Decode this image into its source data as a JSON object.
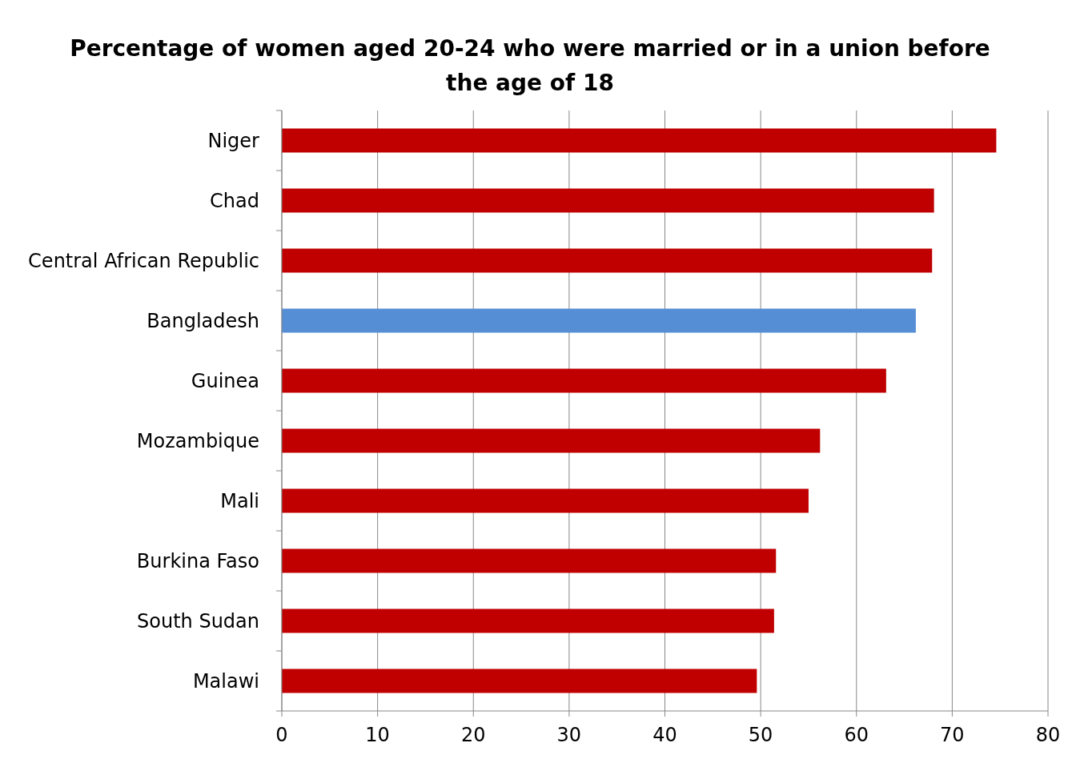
{
  "chart_data": {
    "type": "bar",
    "orientation": "horizontal",
    "title": "Percentage of women aged 20-24 who were married or in a union before the age of 18",
    "categories": [
      "Niger",
      "Chad",
      "Central African Republic",
      "Bangladesh",
      "Guinea",
      "Mozambique",
      "Mali",
      "Burkina Faso",
      "South Sudan",
      "Malawi"
    ],
    "values": [
      74.6,
      68.1,
      67.9,
      66.2,
      63.1,
      56.2,
      55.0,
      51.6,
      51.4,
      49.6
    ],
    "colors": [
      "#c00000",
      "#c00000",
      "#c00000",
      "#558ed5",
      "#c00000",
      "#c00000",
      "#c00000",
      "#c00000",
      "#c00000",
      "#c00000"
    ],
    "xlim": [
      0,
      80
    ],
    "xticks": [
      0,
      10,
      20,
      30,
      40,
      50,
      60,
      70,
      80
    ],
    "grid": "x"
  }
}
